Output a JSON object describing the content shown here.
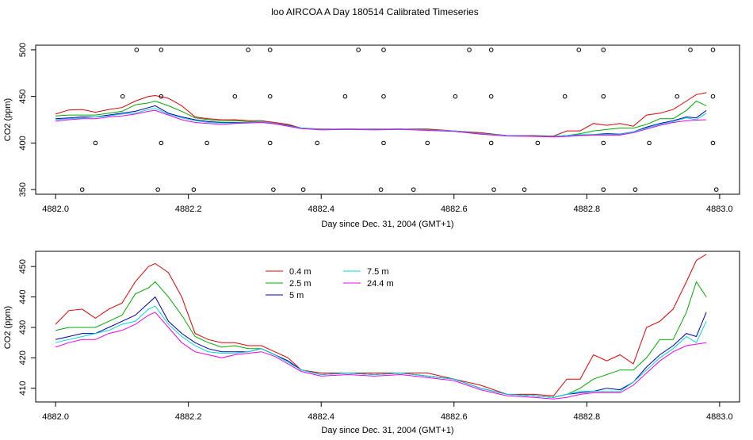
{
  "title": "loo AIRCOA A  Day 180514  Calibrated Timeseries",
  "colors": {
    "0.4 m": "#dd0000",
    "2.5 m": "#00aa00",
    "5 m": "#0000aa",
    "7.5 m": "#00d8d8",
    "24.4 m": "#ee00ee"
  },
  "chart_data": [
    {
      "type": "line+scatter",
      "xlabel": "Day since Dec. 31, 2004 (GMT+1)",
      "ylabel": "CO2 (ppm)",
      "xlim": [
        4881.97,
        4883.03
      ],
      "ylim": [
        345,
        505
      ],
      "xticks": [
        "4882.0",
        "4882.2",
        "4882.4",
        "4882.6",
        "4882.8",
        "4883.0"
      ],
      "yticks": [
        "350",
        "400",
        "450",
        "500"
      ],
      "legend": "none",
      "flag_points": {
        "level_500": [
          4882.122,
          4882.159,
          4882.29,
          4882.323,
          4882.456,
          4882.494,
          4882.623,
          4882.656,
          4882.788,
          4882.825,
          4882.956,
          4882.99
        ],
        "level_450": [
          4882.101,
          4882.159,
          4882.27,
          4882.323,
          4882.436,
          4882.494,
          4882.602,
          4882.656,
          4882.767,
          4882.825,
          4882.936,
          4882.99
        ],
        "level_400": [
          4882.06,
          4882.159,
          4882.228,
          4882.323,
          4882.394,
          4882.494,
          4882.56,
          4882.656,
          4882.726,
          4882.825,
          4882.894,
          4882.99
        ],
        "level_350": [
          4882.04,
          4882.154,
          4882.208,
          4882.328,
          4882.373,
          4882.49,
          4882.539,
          4882.66,
          4882.706,
          4882.825,
          4882.873,
          4882.995
        ]
      },
      "series_ref": "lower"
    },
    {
      "type": "line",
      "xlabel": "Day since Dec. 31, 2004 (GMT+1)",
      "ylabel": "CO2 (ppm)",
      "xlim": [
        4881.97,
        4883.03
      ],
      "ylim": [
        405.5,
        455
      ],
      "xticks": [
        "4882.0",
        "4882.2",
        "4882.4",
        "4882.6",
        "4882.8",
        "4883.0"
      ],
      "yticks": [
        "410",
        "420",
        "430",
        "440",
        "450"
      ],
      "legend": "top-left",
      "legend_entries": [
        "0.4 m",
        "2.5 m",
        "5 m",
        "7.5 m",
        "24.4 m"
      ],
      "series": [
        {
          "name": "0.4 m",
          "points": [
            [
              4882.0,
              431
            ],
            [
              4882.02,
              435.5
            ],
            [
              4882.04,
              436
            ],
            [
              4882.06,
              433
            ],
            [
              4882.08,
              436
            ],
            [
              4882.1,
              438
            ],
            [
              4882.12,
              445
            ],
            [
              4882.14,
              450
            ],
            [
              4882.15,
              451
            ],
            [
              4882.17,
              448
            ],
            [
              4882.19,
              440
            ],
            [
              4882.21,
              428
            ],
            [
              4882.23,
              426
            ],
            [
              4882.25,
              425
            ],
            [
              4882.27,
              425
            ],
            [
              4882.29,
              424
            ],
            [
              4882.31,
              424
            ],
            [
              4882.33,
              422
            ],
            [
              4882.35,
              420
            ],
            [
              4882.37,
              416
            ],
            [
              4882.4,
              415
            ],
            [
              4882.44,
              415
            ],
            [
              4882.48,
              415
            ],
            [
              4882.52,
              415
            ],
            [
              4882.56,
              415
            ],
            [
              4882.6,
              413
            ],
            [
              4882.64,
              411
            ],
            [
              4882.68,
              408
            ],
            [
              4882.72,
              408
            ],
            [
              4882.75,
              407.5
            ],
            [
              4882.77,
              413
            ],
            [
              4882.79,
              413
            ],
            [
              4882.81,
              421
            ],
            [
              4882.83,
              419
            ],
            [
              4882.85,
              421
            ],
            [
              4882.87,
              418
            ],
            [
              4882.89,
              430
            ],
            [
              4882.91,
              432
            ],
            [
              4882.93,
              436
            ],
            [
              4882.95,
              445
            ],
            [
              4882.965,
              452
            ],
            [
              4882.98,
              454
            ]
          ]
        },
        {
          "name": "2.5 m",
          "points": [
            [
              4882.0,
              429
            ],
            [
              4882.02,
              430
            ],
            [
              4882.04,
              430
            ],
            [
              4882.06,
              430
            ],
            [
              4882.08,
              432
            ],
            [
              4882.1,
              434
            ],
            [
              4882.12,
              441
            ],
            [
              4882.14,
              443
            ],
            [
              4882.15,
              445
            ],
            [
              4882.17,
              440
            ],
            [
              4882.19,
              434
            ],
            [
              4882.21,
              427
            ],
            [
              4882.23,
              425
            ],
            [
              4882.25,
              423.5
            ],
            [
              4882.27,
              424
            ],
            [
              4882.29,
              423
            ],
            [
              4882.31,
              423
            ],
            [
              4882.33,
              421
            ],
            [
              4882.35,
              419
            ],
            [
              4882.37,
              416
            ],
            [
              4882.4,
              414.5
            ],
            [
              4882.44,
              415
            ],
            [
              4882.48,
              414.5
            ],
            [
              4882.52,
              415
            ],
            [
              4882.56,
              414
            ],
            [
              4882.6,
              413
            ],
            [
              4882.64,
              410
            ],
            [
              4882.68,
              408
            ],
            [
              4882.72,
              407.5
            ],
            [
              4882.75,
              407
            ],
            [
              4882.77,
              408
            ],
            [
              4882.79,
              410
            ],
            [
              4882.81,
              413
            ],
            [
              4882.83,
              414.5
            ],
            [
              4882.85,
              416
            ],
            [
              4882.87,
              416
            ],
            [
              4882.89,
              420
            ],
            [
              4882.91,
              426
            ],
            [
              4882.93,
              426
            ],
            [
              4882.95,
              435
            ],
            [
              4882.965,
              445
            ],
            [
              4882.98,
              440
            ]
          ]
        },
        {
          "name": "5 m",
          "points": [
            [
              4882.0,
              426
            ],
            [
              4882.02,
              427
            ],
            [
              4882.04,
              428
            ],
            [
              4882.06,
              428
            ],
            [
              4882.08,
              430
            ],
            [
              4882.1,
              432
            ],
            [
              4882.12,
              434
            ],
            [
              4882.14,
              438
            ],
            [
              4882.15,
              440
            ],
            [
              4882.17,
              432
            ],
            [
              4882.19,
              428
            ],
            [
              4882.21,
              425
            ],
            [
              4882.23,
              423
            ],
            [
              4882.25,
              422
            ],
            [
              4882.27,
              422
            ],
            [
              4882.29,
              422
            ],
            [
              4882.31,
              423
            ],
            [
              4882.33,
              421
            ],
            [
              4882.35,
              419
            ],
            [
              4882.37,
              416
            ],
            [
              4882.4,
              414.5
            ],
            [
              4882.44,
              415
            ],
            [
              4882.48,
              414.5
            ],
            [
              4882.52,
              415
            ],
            [
              4882.56,
              414
            ],
            [
              4882.6,
              413
            ],
            [
              4882.64,
              410
            ],
            [
              4882.68,
              408
            ],
            [
              4882.72,
              407.5
            ],
            [
              4882.75,
              407
            ],
            [
              4882.77,
              408
            ],
            [
              4882.79,
              408.5
            ],
            [
              4882.81,
              409
            ],
            [
              4882.83,
              410
            ],
            [
              4882.85,
              409.5
            ],
            [
              4882.87,
              412
            ],
            [
              4882.89,
              417
            ],
            [
              4882.91,
              421
            ],
            [
              4882.93,
              424
            ],
            [
              4882.95,
              428
            ],
            [
              4882.965,
              427
            ],
            [
              4882.98,
              435
            ]
          ]
        },
        {
          "name": "7.5 m",
          "points": [
            [
              4882.0,
              425
            ],
            [
              4882.02,
              426
            ],
            [
              4882.04,
              427
            ],
            [
              4882.06,
              428
            ],
            [
              4882.08,
              429
            ],
            [
              4882.1,
              431
            ],
            [
              4882.12,
              432
            ],
            [
              4882.14,
              436
            ],
            [
              4882.15,
              437
            ],
            [
              4882.17,
              431
            ],
            [
              4882.19,
              427
            ],
            [
              4882.21,
              424
            ],
            [
              4882.23,
              422
            ],
            [
              4882.25,
              421.5
            ],
            [
              4882.27,
              421.5
            ],
            [
              4882.29,
              422
            ],
            [
              4882.31,
              423
            ],
            [
              4882.33,
              421
            ],
            [
              4882.35,
              418.5
            ],
            [
              4882.37,
              416
            ],
            [
              4882.4,
              414.5
            ],
            [
              4882.44,
              415
            ],
            [
              4882.48,
              414.5
            ],
            [
              4882.52,
              415
            ],
            [
              4882.56,
              414
            ],
            [
              4882.6,
              413
            ],
            [
              4882.64,
              410
            ],
            [
              4882.68,
              408
            ],
            [
              4882.72,
              407.5
            ],
            [
              4882.75,
              407
            ],
            [
              4882.77,
              408
            ],
            [
              4882.79,
              409
            ],
            [
              4882.81,
              409
            ],
            [
              4882.83,
              409
            ],
            [
              4882.85,
              409
            ],
            [
              4882.87,
              412
            ],
            [
              4882.89,
              416
            ],
            [
              4882.91,
              420
            ],
            [
              4882.93,
              423
            ],
            [
              4882.95,
              427
            ],
            [
              4882.965,
              425
            ],
            [
              4882.98,
              432
            ]
          ]
        },
        {
          "name": "24.4 m",
          "points": [
            [
              4882.0,
              423.5
            ],
            [
              4882.02,
              425
            ],
            [
              4882.04,
              426
            ],
            [
              4882.06,
              426
            ],
            [
              4882.08,
              428
            ],
            [
              4882.1,
              429
            ],
            [
              4882.12,
              431
            ],
            [
              4882.14,
              434
            ],
            [
              4882.15,
              435
            ],
            [
              4882.17,
              430
            ],
            [
              4882.19,
              425
            ],
            [
              4882.21,
              422
            ],
            [
              4882.23,
              421
            ],
            [
              4882.25,
              420
            ],
            [
              4882.27,
              421
            ],
            [
              4882.29,
              421.5
            ],
            [
              4882.31,
              422
            ],
            [
              4882.33,
              420.5
            ],
            [
              4882.35,
              418
            ],
            [
              4882.37,
              415.5
            ],
            [
              4882.4,
              414
            ],
            [
              4882.44,
              414.5
            ],
            [
              4882.48,
              414
            ],
            [
              4882.52,
              414.5
            ],
            [
              4882.56,
              413.5
            ],
            [
              4882.6,
              412.5
            ],
            [
              4882.64,
              409.5
            ],
            [
              4882.68,
              407.5
            ],
            [
              4882.72,
              407
            ],
            [
              4882.75,
              406.5
            ],
            [
              4882.77,
              407
            ],
            [
              4882.79,
              408
            ],
            [
              4882.81,
              408.5
            ],
            [
              4882.83,
              408.5
            ],
            [
              4882.85,
              408.5
            ],
            [
              4882.87,
              411
            ],
            [
              4882.89,
              415
            ],
            [
              4882.91,
              419
            ],
            [
              4882.93,
              422
            ],
            [
              4882.95,
              424
            ],
            [
              4882.965,
              424.5
            ],
            [
              4882.98,
              425
            ]
          ]
        }
      ]
    }
  ]
}
